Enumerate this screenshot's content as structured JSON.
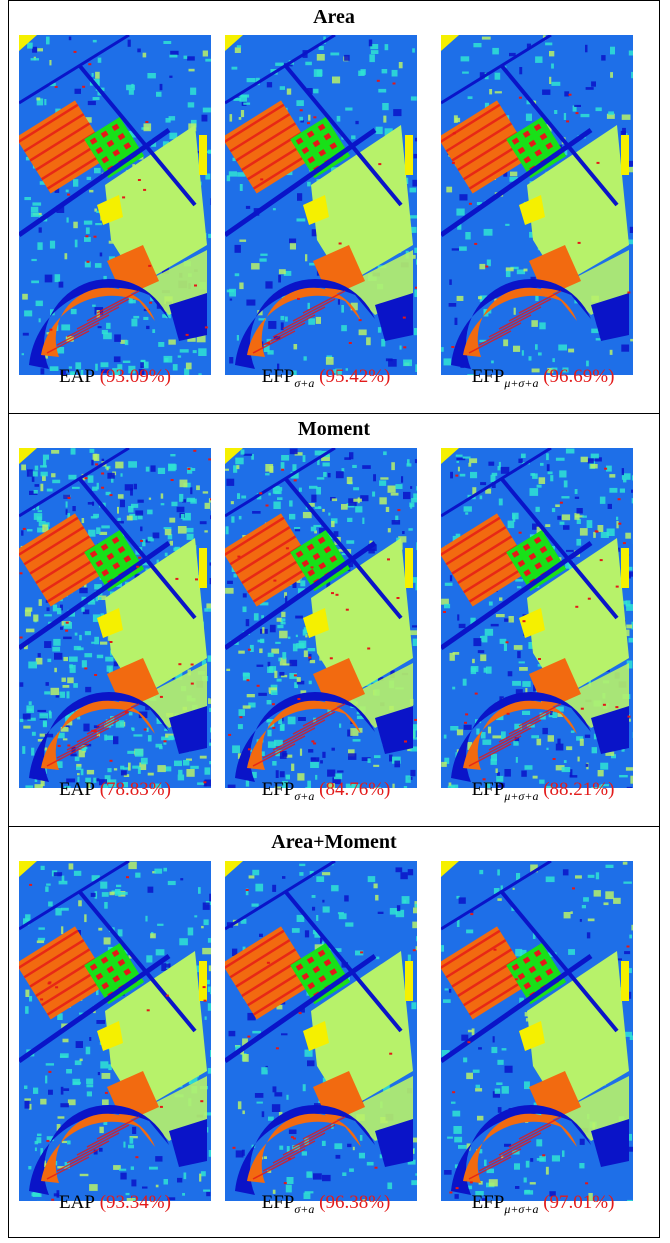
{
  "sections": [
    {
      "title": "Area",
      "captions": [
        {
          "method": "EAP",
          "subscript": "",
          "accuracy": "(93.09%)"
        },
        {
          "method": "EFP",
          "subscript": "σ+a",
          "accuracy": "(95.42%)"
        },
        {
          "method": "EFP",
          "subscript": "μ+σ+a",
          "accuracy": "(96.69%)"
        }
      ]
    },
    {
      "title": "Moment",
      "captions": [
        {
          "method": "EAP",
          "subscript": "",
          "accuracy": "(78.83%)"
        },
        {
          "method": "EFP",
          "subscript": "σ+a",
          "accuracy": "(84.76%)"
        },
        {
          "method": "EFP",
          "subscript": "μ+σ+a",
          "accuracy": "(88.21%)"
        }
      ]
    },
    {
      "title": "Area+Moment",
      "captions": [
        {
          "method": "EAP",
          "subscript": "",
          "accuracy": "(93.34%)"
        },
        {
          "method": "EFP",
          "subscript": "σ+a",
          "accuracy": "(96.38%)"
        },
        {
          "method": "EFP",
          "subscript": "μ+σ+a",
          "accuracy": "(97.01%)"
        }
      ]
    }
  ],
  "colors": {
    "background_class": "#1e6fe8",
    "road_dark_blue": "#0a14c8",
    "meadow_light_green": "#b7f26a",
    "cyan_trees": "#2fe4d4",
    "bare_soil_orange": "#f26a10",
    "bitumen_red": "#e41818",
    "bricks_green": "#18e018",
    "shadow_yellow": "#f5f000",
    "accuracy_red": "#e31b1b"
  }
}
